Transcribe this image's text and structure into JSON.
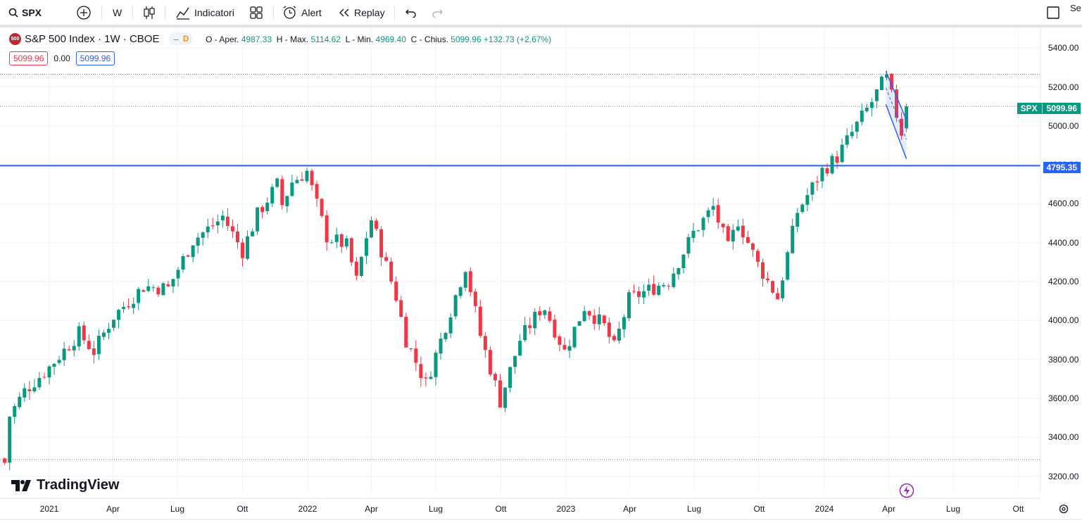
{
  "toolbar": {
    "symbol": "SPX",
    "interval": "W",
    "indicators_label": "Indicatori",
    "alert_label": "Alert",
    "replay_label": "Replay",
    "right_cut_label": "Se"
  },
  "legend": {
    "badge": "500",
    "title": "S&P 500 Index · 1W · CBOE",
    "dash_symbol": "–",
    "d_symbol": "D",
    "o_label": "O - Aper.",
    "o_value": "4987.33",
    "h_label": "H - Max.",
    "h_value": "5114.62",
    "l_label": "L - Min.",
    "l_value": "4969.40",
    "c_label": "C - Chius.",
    "c_value": "5099.96",
    "change": "+132.73 (+2.67%)",
    "bid": "5099.96",
    "spread": "0.00",
    "ask": "5099.96"
  },
  "price_tags": {
    "symbol": "SPX",
    "last": "5099.96",
    "hline": "4795.35"
  },
  "logo_text": "TradingView",
  "colors": {
    "up": "#089981",
    "down": "#f23645",
    "hline": "#2962ff",
    "channel": "#2962ff",
    "grid": "#f0f3fa"
  },
  "chart_data": {
    "type": "candlestick",
    "title": "S&P 500 Index · 1W · CBOE",
    "timeframe": "1W",
    "y_ticks": [
      "5400.00",
      "5200.00",
      "5000.00",
      "4800.00",
      "4600.00",
      "4400.00",
      "4200.00",
      "4000.00",
      "3800.00",
      "3600.00",
      "3400.00",
      "3200.00"
    ],
    "ylim": [
      3170,
      5480
    ],
    "x_ticks": [
      {
        "label": "2021",
        "date": "2021-01-01"
      },
      {
        "label": "Apr",
        "date": "2021-04-01"
      },
      {
        "label": "Lug",
        "date": "2021-07-01"
      },
      {
        "label": "Ott",
        "date": "2021-10-01"
      },
      {
        "label": "2022",
        "date": "2022-01-01"
      },
      {
        "label": "Apr",
        "date": "2022-04-01"
      },
      {
        "label": "Lug",
        "date": "2022-07-01"
      },
      {
        "label": "Ott",
        "date": "2022-10-01"
      },
      {
        "label": "2023",
        "date": "2023-01-01"
      },
      {
        "label": "Apr",
        "date": "2023-04-01"
      },
      {
        "label": "Lug",
        "date": "2023-07-01"
      },
      {
        "label": "Ott",
        "date": "2023-10-01"
      },
      {
        "label": "2024",
        "date": "2024-01-01"
      },
      {
        "label": "Apr",
        "date": "2024-04-01"
      },
      {
        "label": "Lug",
        "date": "2024-07-01"
      },
      {
        "label": "Ott",
        "date": "2024-10-01"
      }
    ],
    "horizontal_line": 4795.35,
    "dotted_levels": [
      5265,
      5100,
      3285
    ],
    "channel": {
      "upper": [
        [
          "2024-03-28",
          5280
        ],
        [
          "2024-04-26",
          5030
        ]
      ],
      "lower": [
        [
          "2024-03-28",
          5110
        ],
        [
          "2024-04-26",
          4830
        ]
      ]
    },
    "close_anchors": [
      [
        "2020-10-30",
        3270
      ],
      [
        "2020-11-06",
        3510
      ],
      [
        "2020-11-27",
        3638
      ],
      [
        "2020-12-31",
        3756
      ],
      [
        "2021-02-12",
        3934
      ],
      [
        "2021-03-05",
        3841
      ],
      [
        "2021-04-01",
        4019
      ],
      [
        "2021-05-14",
        4174
      ],
      [
        "2021-06-18",
        4166
      ],
      [
        "2021-07-23",
        4411
      ],
      [
        "2021-08-27",
        4509
      ],
      [
        "2021-09-03",
        4535
      ],
      [
        "2021-10-01",
        4357
      ],
      [
        "2021-10-22",
        4544
      ],
      [
        "2021-11-19",
        4698
      ],
      [
        "2021-11-26",
        4594
      ],
      [
        "2021-12-10",
        4712
      ],
      [
        "2021-12-31",
        4766
      ],
      [
        "2022-01-07",
        4677
      ],
      [
        "2022-01-28",
        4431
      ],
      [
        "2022-02-25",
        4385
      ],
      [
        "2022-03-11",
        4204
      ],
      [
        "2022-03-31",
        4530
      ],
      [
        "2022-05-06",
        4123
      ],
      [
        "2022-05-20",
        3901
      ],
      [
        "2022-06-17",
        3674
      ],
      [
        "2022-07-08",
        3899
      ],
      [
        "2022-08-12",
        4280
      ],
      [
        "2022-09-02",
        3924
      ],
      [
        "2022-09-30",
        3585
      ],
      [
        "2022-10-28",
        3901
      ],
      [
        "2022-11-30",
        4080
      ],
      [
        "2022-12-30",
        3840
      ],
      [
        "2023-01-27",
        4070
      ],
      [
        "2023-02-24",
        3970
      ],
      [
        "2023-03-10",
        3861
      ],
      [
        "2023-03-31",
        4109
      ],
      [
        "2023-05-26",
        4205
      ],
      [
        "2023-06-30",
        4450
      ],
      [
        "2023-07-28",
        4582
      ],
      [
        "2023-08-18",
        4370
      ],
      [
        "2023-09-01",
        4515
      ],
      [
        "2023-09-29",
        4288
      ],
      [
        "2023-10-27",
        4117
      ],
      [
        "2023-11-24",
        4559
      ],
      [
        "2023-12-29",
        4770
      ],
      [
        "2024-01-19",
        4840
      ],
      [
        "2024-02-16",
        5005
      ],
      [
        "2024-03-08",
        5123
      ],
      [
        "2024-03-28",
        5254
      ],
      [
        "2024-04-19",
        4967
      ],
      [
        "2024-04-26",
        5099.96
      ]
    ],
    "last_candle": {
      "open": 4987.33,
      "high": 5114.62,
      "low": 4969.4,
      "close": 5099.96
    }
  }
}
